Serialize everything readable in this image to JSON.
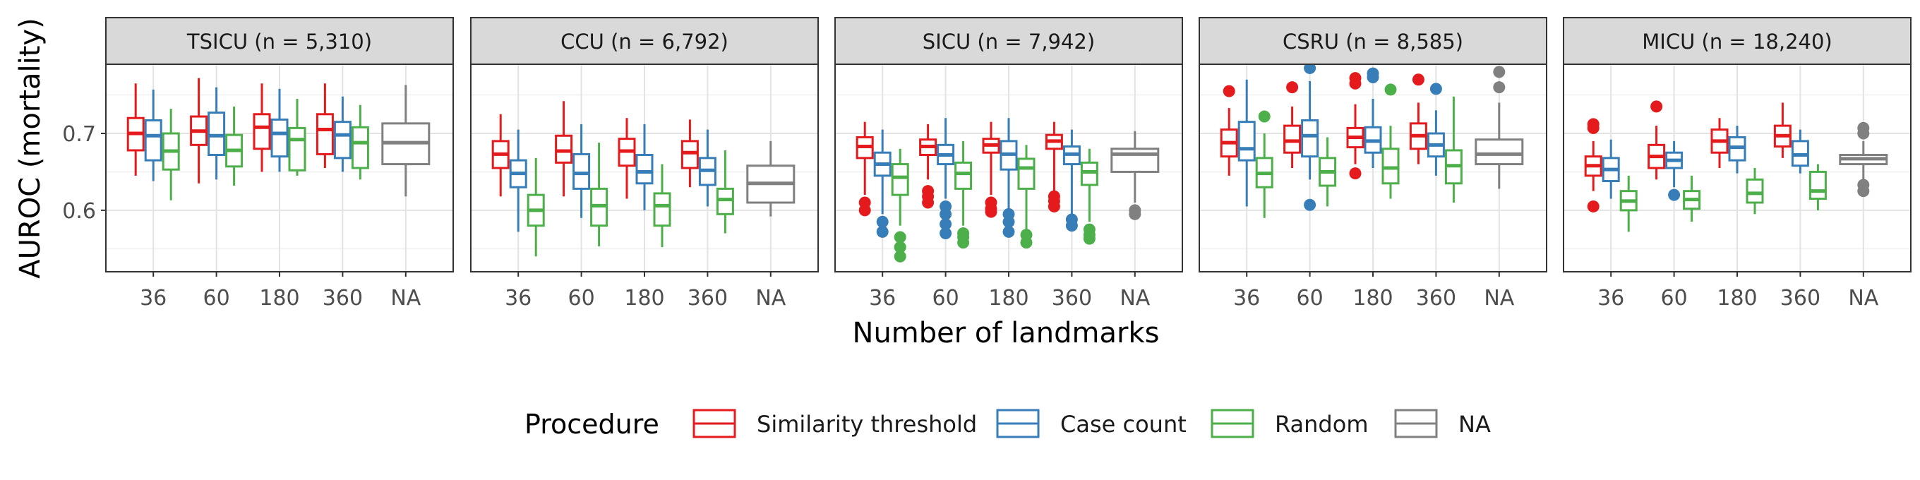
{
  "chart_data": {
    "type": "boxplot",
    "facet_by": "ICU",
    "panels": [
      {
        "strip": "TSICU (n =  5,310)"
      },
      {
        "strip": "CCU (n =  6,792)"
      },
      {
        "strip": "SICU (n =  7,942)"
      },
      {
        "strip": "CSRU (n =  8,585)"
      },
      {
        "strip": "MICU (n = 18,240)"
      }
    ],
    "categories": [
      "36",
      "60",
      "180",
      "360",
      "NA"
    ],
    "xlabel": "Number of landmarks",
    "ylabel": "AUROC (mortality)",
    "ylim": [
      0.52,
      0.79
    ],
    "yticks": [
      0.6,
      0.7
    ],
    "ytick_labels": [
      "0.6",
      "0.7"
    ],
    "grid": true,
    "legend": {
      "title": "Procedure",
      "position": "bottom",
      "entries": [
        "Similarity threshold",
        "Case count",
        "Random",
        "NA"
      ]
    },
    "series": [
      {
        "name": "Similarity threshold",
        "color": "#e41a1c"
      },
      {
        "name": "Case count",
        "color": "#377eb8"
      },
      {
        "name": "Random",
        "color": "#4daf4a"
      },
      {
        "name": "NA",
        "color": "#808080"
      }
    ],
    "data": [
      [
        [
          [
            0.645,
            0.678,
            0.7,
            0.72,
            0.765,
            []
          ],
          [
            0.638,
            0.665,
            0.697,
            0.717,
            0.757,
            []
          ],
          [
            0.613,
            0.653,
            0.677,
            0.7,
            0.732,
            []
          ]
        ],
        [
          [
            0.635,
            0.685,
            0.703,
            0.722,
            0.772,
            []
          ],
          [
            0.64,
            0.672,
            0.697,
            0.727,
            0.76,
            []
          ],
          [
            0.632,
            0.657,
            0.678,
            0.698,
            0.735,
            []
          ]
        ],
        [
          [
            0.65,
            0.68,
            0.708,
            0.725,
            0.765,
            []
          ],
          [
            0.65,
            0.67,
            0.7,
            0.718,
            0.758,
            []
          ],
          [
            0.645,
            0.652,
            0.692,
            0.707,
            0.745,
            []
          ]
        ],
        [
          [
            0.655,
            0.673,
            0.705,
            0.725,
            0.765,
            []
          ],
          [
            0.65,
            0.668,
            0.698,
            0.715,
            0.748,
            []
          ],
          [
            0.64,
            0.655,
            0.688,
            0.708,
            0.737,
            []
          ]
        ],
        [
          [
            0.618,
            0.66,
            0.688,
            0.713,
            0.763,
            []
          ]
        ]
      ],
      [
        [
          [
            0.618,
            0.655,
            0.673,
            0.69,
            0.725,
            []
          ],
          [
            0.572,
            0.63,
            0.648,
            0.665,
            0.705,
            []
          ],
          [
            0.54,
            0.58,
            0.6,
            0.62,
            0.668,
            []
          ]
        ],
        [
          [
            0.618,
            0.662,
            0.677,
            0.697,
            0.742,
            []
          ],
          [
            0.59,
            0.628,
            0.648,
            0.673,
            0.712,
            []
          ],
          [
            0.553,
            0.58,
            0.606,
            0.628,
            0.688,
            []
          ]
        ],
        [
          [
            0.615,
            0.658,
            0.677,
            0.693,
            0.72,
            []
          ],
          [
            0.6,
            0.635,
            0.65,
            0.672,
            0.712,
            []
          ],
          [
            0.552,
            0.58,
            0.606,
            0.622,
            0.66,
            []
          ]
        ],
        [
          [
            0.63,
            0.655,
            0.675,
            0.69,
            0.718,
            []
          ],
          [
            0.605,
            0.633,
            0.652,
            0.668,
            0.705,
            []
          ],
          [
            0.57,
            0.595,
            0.614,
            0.628,
            0.678,
            []
          ]
        ],
        [
          [
            0.592,
            0.61,
            0.635,
            0.658,
            0.69,
            []
          ]
        ]
      ],
      [
        [
          [
            0.62,
            0.668,
            0.683,
            0.695,
            0.715,
            [
              0.61,
              0.6
            ]
          ],
          [
            0.595,
            0.645,
            0.66,
            0.675,
            0.705,
            [
              0.585,
              0.572
            ]
          ],
          [
            0.58,
            0.62,
            0.643,
            0.66,
            0.68,
            [
              0.565,
              0.552,
              0.54
            ]
          ]
        ],
        [
          [
            0.64,
            0.672,
            0.683,
            0.692,
            0.712,
            [
              0.625,
              0.618,
              0.61
            ]
          ],
          [
            0.615,
            0.66,
            0.672,
            0.685,
            0.72,
            [
              0.605,
              0.595,
              0.582,
              0.57
            ]
          ],
          [
            0.58,
            0.628,
            0.648,
            0.662,
            0.69,
            [
              0.57,
              0.565,
              0.558
            ]
          ]
        ],
        [
          [
            0.62,
            0.675,
            0.685,
            0.693,
            0.715,
            [
              0.61,
              0.602,
              0.598
            ]
          ],
          [
            0.6,
            0.653,
            0.673,
            0.69,
            0.72,
            [
              0.595,
              0.585,
              0.572
            ]
          ],
          [
            0.575,
            0.628,
            0.655,
            0.667,
            0.685,
            [
              0.568,
              0.558
            ]
          ]
        ],
        [
          [
            0.625,
            0.68,
            0.69,
            0.698,
            0.715,
            [
              0.618,
              0.612,
              0.605
            ]
          ],
          [
            0.595,
            0.66,
            0.673,
            0.683,
            0.705,
            [
              0.588,
              0.58
            ]
          ],
          [
            0.585,
            0.633,
            0.65,
            0.662,
            0.68,
            [
              0.575,
              0.568,
              0.563
            ]
          ]
        ],
        [
          [
            0.61,
            0.65,
            0.673,
            0.68,
            0.703,
            [
              0.6,
              0.595
            ]
          ]
        ]
      ],
      [
        [
          [
            0.645,
            0.67,
            0.688,
            0.705,
            0.733,
            [
              0.755
            ]
          ],
          [
            0.605,
            0.665,
            0.68,
            0.715,
            0.77,
            []
          ],
          [
            0.59,
            0.63,
            0.648,
            0.668,
            0.7,
            [
              0.722
            ]
          ]
        ],
        [
          [
            0.655,
            0.675,
            0.69,
            0.71,
            0.735,
            [
              0.76
            ]
          ],
          [
            0.64,
            0.67,
            0.697,
            0.717,
            0.768,
            [
              0.785,
              0.607
            ]
          ],
          [
            0.605,
            0.632,
            0.65,
            0.668,
            0.695,
            []
          ]
        ],
        [
          [
            0.66,
            0.682,
            0.695,
            0.707,
            0.738,
            [
              0.772,
              0.765,
              0.648
            ]
          ],
          [
            0.655,
            0.675,
            0.69,
            0.708,
            0.745,
            [
              0.778,
              0.773
            ]
          ],
          [
            0.615,
            0.635,
            0.655,
            0.68,
            0.71,
            [
              0.757
            ]
          ]
        ],
        [
          [
            0.66,
            0.68,
            0.697,
            0.713,
            0.74,
            [
              0.77
            ]
          ],
          [
            0.645,
            0.67,
            0.685,
            0.7,
            0.73,
            [
              0.758
            ]
          ],
          [
            0.61,
            0.635,
            0.658,
            0.678,
            0.748,
            []
          ]
        ],
        [
          [
            0.628,
            0.66,
            0.673,
            0.692,
            0.74,
            [
              0.78,
              0.76
            ]
          ]
        ]
      ],
      [
        [
          [
            0.625,
            0.645,
            0.658,
            0.67,
            0.69,
            [
              0.712,
              0.707,
              0.605
            ]
          ],
          [
            0.615,
            0.638,
            0.653,
            0.668,
            0.692,
            []
          ],
          [
            0.572,
            0.6,
            0.612,
            0.625,
            0.645,
            []
          ]
        ],
        [
          [
            0.64,
            0.655,
            0.67,
            0.685,
            0.71,
            [
              0.735
            ]
          ],
          [
            0.63,
            0.655,
            0.665,
            0.675,
            0.69,
            [
              0.62
            ]
          ],
          [
            0.585,
            0.602,
            0.614,
            0.625,
            0.645,
            []
          ]
        ],
        [
          [
            0.655,
            0.675,
            0.69,
            0.705,
            0.72,
            []
          ],
          [
            0.648,
            0.665,
            0.682,
            0.695,
            0.71,
            []
          ],
          [
            0.595,
            0.61,
            0.622,
            0.64,
            0.655,
            []
          ]
        ],
        [
          [
            0.668,
            0.683,
            0.697,
            0.71,
            0.74,
            []
          ],
          [
            0.648,
            0.658,
            0.672,
            0.69,
            0.705,
            []
          ],
          [
            0.6,
            0.615,
            0.625,
            0.65,
            0.66,
            []
          ]
        ],
        [
          [
            0.64,
            0.66,
            0.667,
            0.672,
            0.69,
            [
              0.707,
              0.7,
              0.633,
              0.625
            ]
          ]
        ]
      ]
    ]
  }
}
